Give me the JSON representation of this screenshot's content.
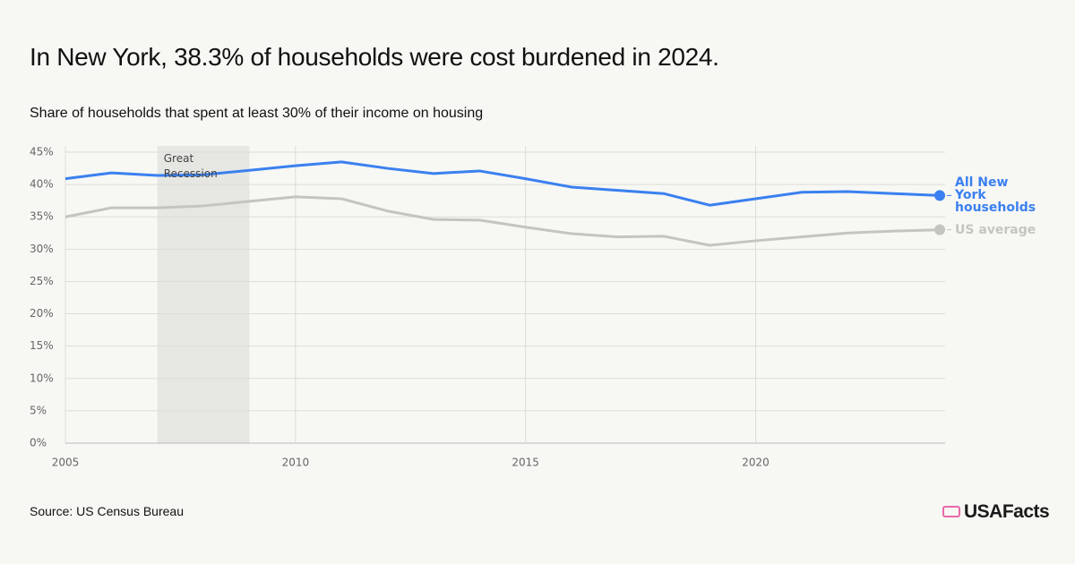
{
  "chart_data": {
    "type": "line",
    "title": "In New York, 38.3% of households were cost burdened in 2024.",
    "subtitle": "Share of households that spent at least 30% of their income on housing",
    "source": "Source: US Census Bureau",
    "brand": "USAFacts",
    "x": [
      2005,
      2006,
      2007,
      2008,
      2009,
      2010,
      2011,
      2012,
      2013,
      2014,
      2015,
      2016,
      2017,
      2018,
      2019,
      2020,
      2021,
      2022,
      2023,
      2024
    ],
    "series": [
      {
        "name": "All New York households",
        "color": "#3a80f0",
        "values": [
          40.9,
          41.8,
          41.4,
          41.5,
          42.2,
          42.9,
          43.5,
          42.5,
          41.7,
          42.1,
          40.9,
          39.6,
          39.1,
          38.6,
          36.8,
          37.8,
          38.8,
          38.9,
          38.6,
          38.3
        ]
      },
      {
        "name": "US average",
        "color": "#c4c4c0",
        "values": [
          35.0,
          36.4,
          36.4,
          36.7,
          37.4,
          38.1,
          37.8,
          35.9,
          34.6,
          34.5,
          33.4,
          32.4,
          31.9,
          32.0,
          30.6,
          31.3,
          31.9,
          32.5,
          32.8,
          33.0
        ]
      }
    ],
    "shaded_region": {
      "x": [
        2007,
        2009
      ],
      "label": "Great Recession",
      "color": "#e6e6e2"
    },
    "xlim": [
      2005,
      2024
    ],
    "xticks": [
      2005,
      2010,
      2015,
      2020
    ],
    "ylim": [
      0,
      45
    ],
    "yticks": [
      {
        "value": 0,
        "label": "0%"
      },
      {
        "value": 5,
        "label": "5%"
      },
      {
        "value": 10,
        "label": "10%"
      },
      {
        "value": 15,
        "label": "15%"
      },
      {
        "value": 20,
        "label": "20%"
      },
      {
        "value": 25,
        "label": "25%"
      },
      {
        "value": 30,
        "label": "30%"
      },
      {
        "value": 35,
        "label": "35%"
      },
      {
        "value": 40,
        "label": "40%"
      },
      {
        "value": 45,
        "label": "45%"
      }
    ],
    "grid": true
  }
}
